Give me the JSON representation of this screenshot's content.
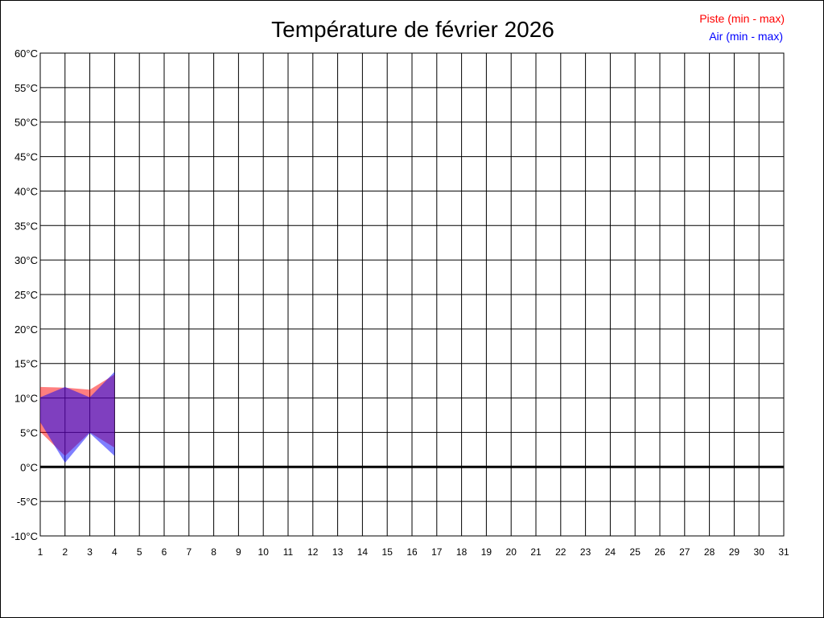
{
  "chart_data": {
    "type": "area",
    "title": "Température de février 2026",
    "xlabel": "",
    "ylabel": "",
    "x": [
      1,
      2,
      3,
      4
    ],
    "xlim": [
      1,
      31
    ],
    "x_ticks": [
      "1",
      "2",
      "3",
      "4",
      "5",
      "6",
      "7",
      "8",
      "9",
      "10",
      "11",
      "12",
      "13",
      "14",
      "15",
      "16",
      "17",
      "18",
      "19",
      "20",
      "21",
      "22",
      "23",
      "24",
      "25",
      "26",
      "27",
      "28",
      "29",
      "30",
      "31"
    ],
    "ylim": [
      -10,
      60
    ],
    "y_ticks": [
      "-10°C",
      "-5°C",
      "0°C",
      "5°C",
      "10°C",
      "15°C",
      "20°C",
      "25°C",
      "30°C",
      "35°C",
      "40°C",
      "45°C",
      "50°C",
      "55°C",
      "60°C"
    ],
    "grid": true,
    "legend_position": "top-right",
    "series": [
      {
        "name": "Piste (min - max)",
        "color": "#ff0000",
        "min": [
          5.1,
          1.6,
          5.0,
          2.8
        ],
        "max": [
          11.6,
          11.5,
          11.2,
          13.4
        ]
      },
      {
        "name": "Air (min - max)",
        "color": "#0000ff",
        "min": [
          6.5,
          0.6,
          4.9,
          1.6
        ],
        "max": [
          10.1,
          11.6,
          10.1,
          13.8
        ]
      }
    ]
  }
}
